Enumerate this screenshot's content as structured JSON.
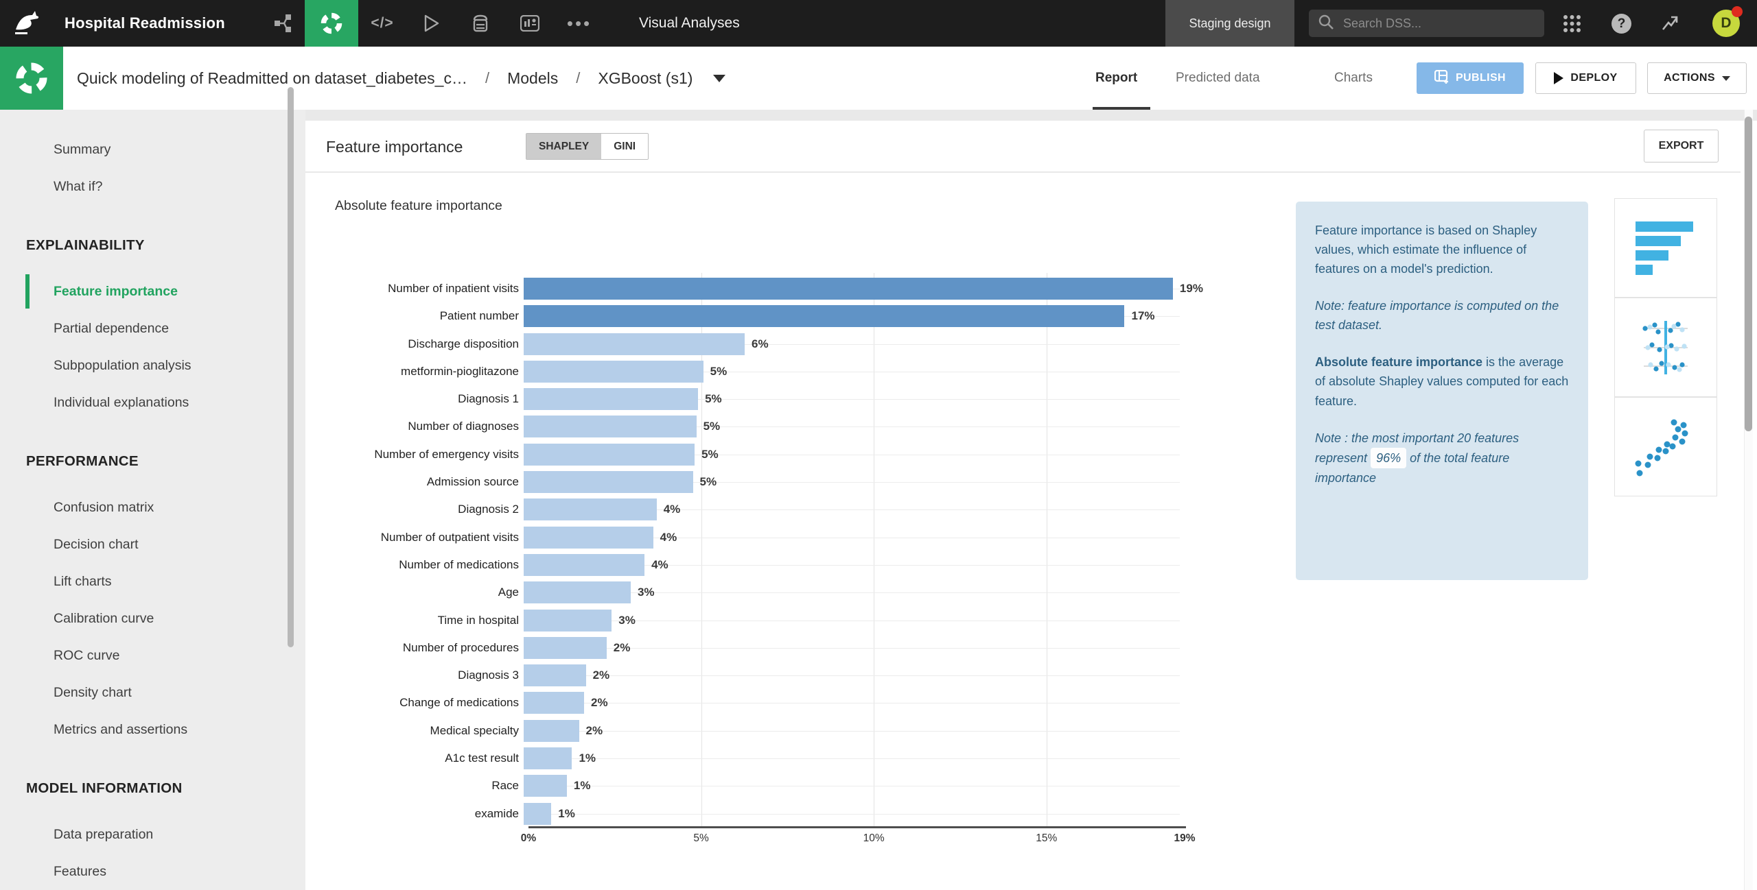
{
  "navbar": {
    "project_name": "Hospital Readmission",
    "page_title": "Visual Analyses",
    "env_label": "Staging design",
    "search_placeholder": "Search DSS...",
    "avatar_letter": "D"
  },
  "breadcrumb": {
    "title": "Quick modeling of Readmitted on dataset_diabetes_c…",
    "separator": "/",
    "models": "Models",
    "model_version": "XGBoost (s1)"
  },
  "tabs": [
    {
      "label": "Report",
      "active": true
    },
    {
      "label": "Predicted data",
      "active": false
    },
    {
      "label": "Charts",
      "active": false
    }
  ],
  "actions": {
    "publish": "PUBLISH",
    "deploy": "DEPLOY",
    "actions": "ACTIONS"
  },
  "sidebar": {
    "sections": [
      {
        "header": "",
        "items": [
          {
            "label": "Summary"
          },
          {
            "label": "What if?"
          }
        ]
      },
      {
        "header": "EXPLAINABILITY",
        "items": [
          {
            "label": "Feature importance",
            "active": true
          },
          {
            "label": "Partial dependence"
          },
          {
            "label": "Subpopulation analysis"
          },
          {
            "label": "Individual explanations"
          }
        ]
      },
      {
        "header": "PERFORMANCE",
        "items": [
          {
            "label": "Confusion matrix"
          },
          {
            "label": "Decision chart"
          },
          {
            "label": "Lift charts"
          },
          {
            "label": "Calibration curve"
          },
          {
            "label": "ROC curve"
          },
          {
            "label": "Density chart"
          },
          {
            "label": "Metrics and assertions"
          }
        ]
      },
      {
        "header": "MODEL INFORMATION",
        "items": [
          {
            "label": "Data preparation"
          },
          {
            "label": "Features"
          }
        ]
      }
    ]
  },
  "panel": {
    "title": "Feature importance",
    "toggle": [
      "SHAPLEY",
      "GINI"
    ],
    "toggle_selected": "SHAPLEY",
    "export_label": "EXPORT"
  },
  "chart_data": {
    "type": "bar",
    "orientation": "horizontal",
    "title": "Absolute feature importance",
    "categories": [
      "Number of inpatient visits",
      "Patient number",
      "Discharge disposition",
      "metformin-pioglitazone",
      "Diagnosis 1",
      "Number of diagnoses",
      "Number of emergency visits",
      "Admission source",
      "Diagnosis 2",
      "Number of outpatient visits",
      "Number of medications",
      "Age",
      "Time in hospital",
      "Number of procedures",
      "Diagnosis 3",
      "Change of medications",
      "Medical specialty",
      "A1c test result",
      "Race",
      "examide"
    ],
    "values": [
      18.8,
      17.4,
      6.4,
      5.2,
      5.05,
      5.0,
      4.95,
      4.9,
      3.85,
      3.75,
      3.5,
      3.1,
      2.55,
      2.4,
      1.8,
      1.75,
      1.6,
      1.4,
      1.25,
      0.8
    ],
    "labels": [
      "19%",
      "17%",
      "6%",
      "5%",
      "5%",
      "5%",
      "5%",
      "5%",
      "4%",
      "4%",
      "4%",
      "3%",
      "3%",
      "2%",
      "2%",
      "2%",
      "2%",
      "1%",
      "1%",
      "1%"
    ],
    "x_ticks": [
      {
        "label": "0%",
        "pct": 0,
        "bold": true
      },
      {
        "label": "5%",
        "pct": 5,
        "bold": false
      },
      {
        "label": "10%",
        "pct": 10,
        "bold": false
      },
      {
        "label": "15%",
        "pct": 15,
        "bold": false
      },
      {
        "label": "19%",
        "pct": 19,
        "bold": true
      }
    ],
    "xlim": [
      0,
      19
    ],
    "gridlines_pct": [
      5,
      10,
      15
    ],
    "highlight_first_n": 2,
    "colors": {
      "highlight_bar": "#6093c6",
      "normal_bar": "#b5cee9"
    }
  },
  "info_panel": {
    "p1": "Feature importance is based on Shapley values, which estimate the influence of features on a model's prediction.",
    "p2": "Note: feature importance is computed on the test dataset.",
    "p3_bold": "Absolute feature importance",
    "p3_rest": " is the average of absolute Shapley values computed for each feature.",
    "p4_pre": "Note : the most important 20 features represent",
    "p4_badge": "96%",
    "p4_post": "of the total feature importance"
  },
  "thumbnails": [
    {
      "name": "bar-chart-thumbnail"
    },
    {
      "name": "shapley-beeswarm-thumbnail"
    },
    {
      "name": "scatter-plot-thumbnail"
    }
  ]
}
